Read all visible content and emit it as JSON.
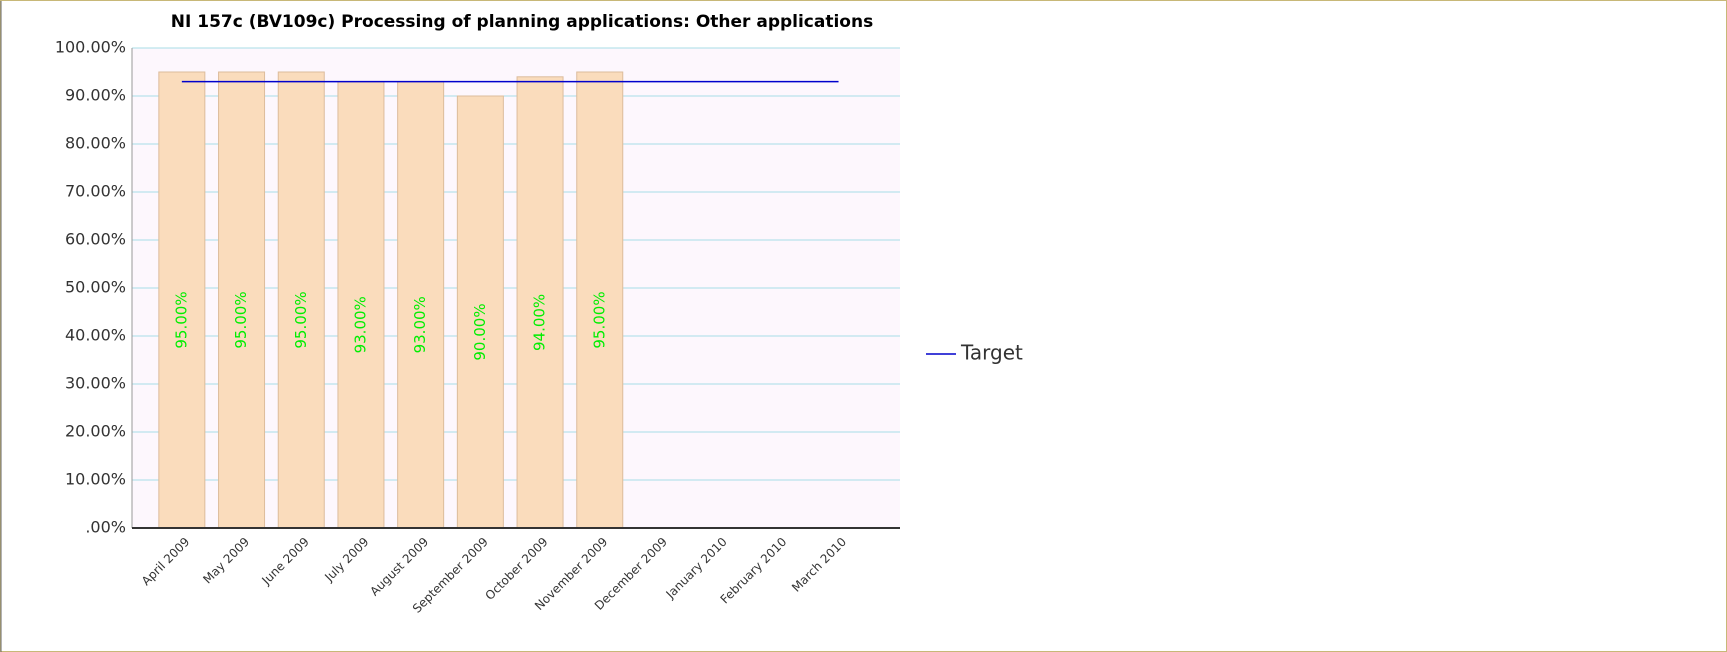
{
  "chart_data": {
    "type": "bar",
    "title": "NI 157c (BV109c) Processing of planning applications: Other applications",
    "categories": [
      "April 2009",
      "May 2009",
      "June 2009",
      "July 2009",
      "August 2009",
      "September 2009",
      "October 2009",
      "November 2009",
      "December 2009",
      "January 2010",
      "February 2010",
      "March 2010"
    ],
    "series": [
      {
        "type": "bar",
        "color": "#fadcbc",
        "values": [
          95,
          95,
          95,
          93,
          93,
          90,
          94,
          95,
          null,
          null,
          null,
          null
        ],
        "value_labels": [
          "95.00%",
          "95.00%",
          "95.00%",
          "93.00%",
          "93.00%",
          "90.00%",
          "94.00%",
          "95.00%",
          null,
          null,
          null,
          null
        ]
      },
      {
        "type": "line",
        "name": "Target",
        "color": "#0000cc",
        "values": [
          93,
          93,
          93,
          93,
          93,
          93,
          93,
          93,
          93,
          93,
          93,
          93
        ]
      }
    ],
    "ylim": [
      0,
      100
    ],
    "yticks": [
      {
        "value": 0,
        "label": ".00%"
      },
      {
        "value": 10,
        "label": "10.00%"
      },
      {
        "value": 20,
        "label": "20.00%"
      },
      {
        "value": 30,
        "label": "30.00%"
      },
      {
        "value": 40,
        "label": "40.00%"
      },
      {
        "value": 50,
        "label": "50.00%"
      },
      {
        "value": 60,
        "label": "60.00%"
      },
      {
        "value": 70,
        "label": "70.00%"
      },
      {
        "value": 80,
        "label": "80.00%"
      },
      {
        "value": 90,
        "label": "90.00%"
      },
      {
        "value": 100,
        "label": "100.00%"
      }
    ],
    "grid": true,
    "legend": "right"
  }
}
